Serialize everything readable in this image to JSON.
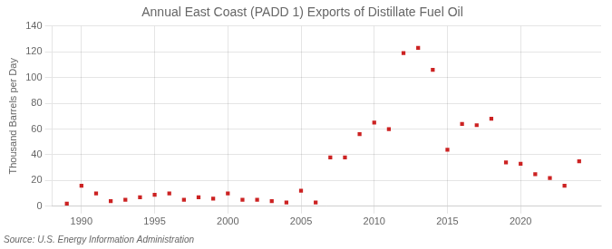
{
  "chart_data": {
    "type": "scatter",
    "title": "Annual East Coast (PADD 1) Exports of Distillate Fuel Oil",
    "ylabel": "Thousand Barrels per Day",
    "annotation": "Source: U.S. Energy Information Administration",
    "x": [
      1989,
      1990,
      1991,
      1992,
      1993,
      1994,
      1995,
      1996,
      1997,
      1998,
      1999,
      2000,
      2001,
      2002,
      2003,
      2004,
      2005,
      2006,
      2007,
      2008,
      2009,
      2010,
      2011,
      2012,
      2013,
      2014,
      2015,
      2016,
      2017,
      2018,
      2019,
      2020,
      2021,
      2022,
      2023,
      2024
    ],
    "values": [
      2,
      16,
      10,
      4,
      5,
      7,
      9,
      10,
      5,
      7,
      6,
      10,
      5,
      5,
      4,
      3,
      12,
      3,
      38,
      38,
      56,
      65,
      60,
      119,
      123,
      106,
      44,
      64,
      63,
      68,
      34,
      33,
      25,
      22,
      16,
      35
    ],
    "color": "#cc2222",
    "marker": "square",
    "xlim": [
      1988.0,
      2025.5
    ],
    "xticks": [
      1990,
      1995,
      2000,
      2005,
      2010,
      2015,
      2020
    ],
    "ylim": [
      0,
      140
    ],
    "yticks": [
      0,
      20,
      40,
      60,
      80,
      100,
      120,
      140
    ],
    "grid": true
  }
}
